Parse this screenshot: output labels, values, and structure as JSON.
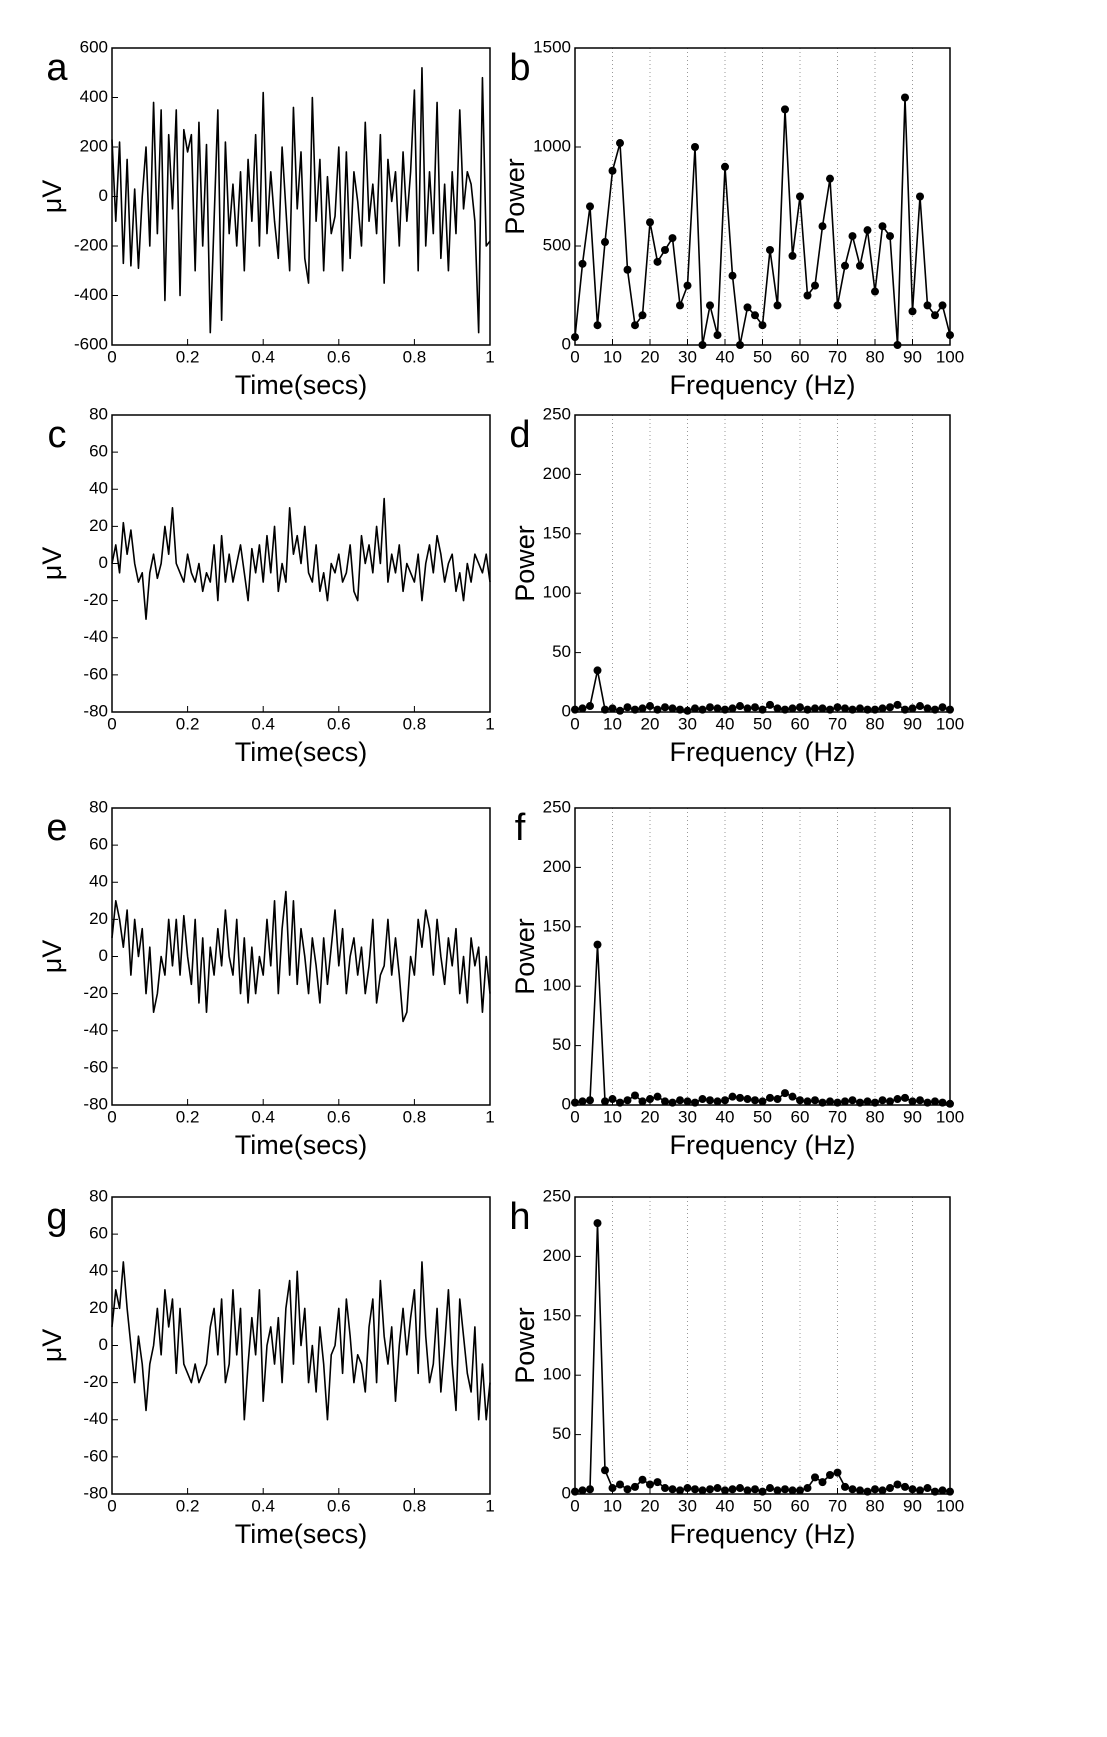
{
  "chart_data": [
    {
      "type": "line",
      "panel": "a",
      "xlabel": "Time(secs)",
      "ylabel": "μV",
      "color": "#000000",
      "markers": false,
      "grid": "none",
      "xlim": [
        0,
        1
      ],
      "ylim": [
        -600,
        600
      ],
      "xticks": [
        0,
        0.2,
        0.4,
        0.6,
        0.8,
        1
      ],
      "yticks": [
        -600,
        -400,
        -200,
        0,
        200,
        400,
        600
      ],
      "x": [
        0,
        0.01,
        0.02,
        0.03,
        0.04,
        0.05,
        0.06,
        0.07,
        0.08,
        0.09,
        0.1,
        0.11,
        0.12,
        0.13,
        0.14,
        0.15,
        0.16,
        0.17,
        0.18,
        0.19,
        0.2,
        0.21,
        0.22,
        0.23,
        0.24,
        0.25,
        0.26,
        0.27,
        0.28,
        0.29,
        0.3,
        0.31,
        0.32,
        0.33,
        0.34,
        0.35,
        0.36,
        0.37,
        0.38,
        0.39,
        0.4,
        0.41,
        0.42,
        0.43,
        0.44,
        0.45,
        0.46,
        0.47,
        0.48,
        0.49,
        0.5,
        0.51,
        0.52,
        0.53,
        0.54,
        0.55,
        0.56,
        0.57,
        0.58,
        0.59,
        0.6,
        0.61,
        0.62,
        0.63,
        0.64,
        0.65,
        0.66,
        0.67,
        0.68,
        0.69,
        0.7,
        0.71,
        0.72,
        0.73,
        0.74,
        0.75,
        0.76,
        0.77,
        0.78,
        0.79,
        0.8,
        0.81,
        0.82,
        0.83,
        0.84,
        0.85,
        0.86,
        0.87,
        0.88,
        0.89,
        0.9,
        0.91,
        0.92,
        0.93,
        0.94,
        0.95,
        0.96,
        0.97,
        0.98,
        0.99,
        1
      ],
      "values": [
        230,
        -100,
        220,
        -270,
        150,
        -280,
        30,
        -290,
        0,
        200,
        -200,
        380,
        -150,
        350,
        -420,
        250,
        -50,
        350,
        -400,
        270,
        180,
        250,
        -300,
        300,
        -200,
        210,
        -550,
        -100,
        350,
        -500,
        220,
        -150,
        50,
        -200,
        100,
        -300,
        150,
        -100,
        250,
        -200,
        420,
        -150,
        100,
        -100,
        -250,
        200,
        -50,
        -300,
        360,
        -50,
        180,
        -250,
        -350,
        400,
        -100,
        150,
        -300,
        80,
        -150,
        -80,
        200,
        -300,
        180,
        -250,
        100,
        -20,
        -200,
        300,
        -100,
        50,
        -150,
        250,
        -350,
        150,
        -20,
        100,
        -200,
        180,
        -100,
        100,
        430,
        -300,
        520,
        -200,
        100,
        -150,
        380,
        -250,
        50,
        -300,
        100,
        -150,
        350,
        -50,
        100,
        50,
        -100,
        -550,
        480,
        -200,
        -180
      ]
    },
    {
      "type": "line",
      "panel": "b",
      "xlabel": "Frequency (Hz)",
      "ylabel": "Power",
      "color": "#000000",
      "markers": true,
      "grid": "x",
      "xlim": [
        0,
        100
      ],
      "ylim": [
        0,
        1500
      ],
      "xticks": [
        0,
        10,
        20,
        30,
        40,
        50,
        60,
        70,
        80,
        90,
        100
      ],
      "yticks": [
        0,
        500,
        1000,
        1500
      ],
      "x": [
        0,
        2,
        4,
        6,
        8,
        10,
        12,
        14,
        16,
        18,
        20,
        22,
        24,
        26,
        28,
        30,
        32,
        34,
        36,
        38,
        40,
        42,
        44,
        46,
        48,
        50,
        52,
        54,
        56,
        58,
        60,
        62,
        64,
        66,
        68,
        70,
        72,
        74,
        76,
        78,
        80,
        82,
        84,
        86,
        88,
        90,
        92,
        94,
        96,
        98,
        100
      ],
      "values": [
        40,
        410,
        700,
        100,
        520,
        880,
        1020,
        380,
        100,
        150,
        620,
        420,
        480,
        540,
        200,
        300,
        1000,
        0,
        200,
        50,
        900,
        350,
        0,
        190,
        150,
        100,
        480,
        200,
        1190,
        450,
        750,
        250,
        300,
        600,
        840,
        200,
        400,
        550,
        400,
        580,
        270,
        600,
        550,
        0,
        1250,
        170,
        750,
        200,
        150,
        200,
        50
      ]
    },
    {
      "type": "line",
      "panel": "c",
      "xlabel": "Time(secs)",
      "ylabel": "μV",
      "color": "#000000",
      "markers": false,
      "grid": "none",
      "xlim": [
        0,
        1
      ],
      "ylim": [
        -80,
        80
      ],
      "xticks": [
        0,
        0.2,
        0.4,
        0.6,
        0.8,
        1
      ],
      "yticks": [
        -80,
        -60,
        -40,
        -20,
        0,
        20,
        40,
        60,
        80
      ],
      "x": [
        0,
        0.01,
        0.02,
        0.03,
        0.04,
        0.05,
        0.06,
        0.07,
        0.08,
        0.09,
        0.1,
        0.11,
        0.12,
        0.13,
        0.14,
        0.15,
        0.16,
        0.17,
        0.18,
        0.19,
        0.2,
        0.21,
        0.22,
        0.23,
        0.24,
        0.25,
        0.26,
        0.27,
        0.28,
        0.29,
        0.3,
        0.31,
        0.32,
        0.33,
        0.34,
        0.35,
        0.36,
        0.37,
        0.38,
        0.39,
        0.4,
        0.41,
        0.42,
        0.43,
        0.44,
        0.45,
        0.46,
        0.47,
        0.48,
        0.49,
        0.5,
        0.51,
        0.52,
        0.53,
        0.54,
        0.55,
        0.56,
        0.57,
        0.58,
        0.59,
        0.6,
        0.61,
        0.62,
        0.63,
        0.64,
        0.65,
        0.66,
        0.67,
        0.68,
        0.69,
        0.7,
        0.71,
        0.72,
        0.73,
        0.74,
        0.75,
        0.76,
        0.77,
        0.78,
        0.79,
        0.8,
        0.81,
        0.82,
        0.83,
        0.84,
        0.85,
        0.86,
        0.87,
        0.88,
        0.89,
        0.9,
        0.91,
        0.92,
        0.93,
        0.94,
        0.95,
        0.96,
        0.97,
        0.98,
        0.99,
        1
      ],
      "values": [
        0,
        10,
        -5,
        22,
        5,
        18,
        0,
        -10,
        -5,
        -30,
        -5,
        5,
        -8,
        0,
        20,
        5,
        30,
        0,
        -5,
        -10,
        5,
        -5,
        -10,
        0,
        -15,
        -5,
        -10,
        10,
        -20,
        15,
        -10,
        5,
        -10,
        0,
        10,
        -5,
        -20,
        8,
        -5,
        10,
        -10,
        15,
        -5,
        20,
        -15,
        0,
        -10,
        30,
        5,
        15,
        0,
        20,
        -5,
        -10,
        10,
        -15,
        -5,
        -20,
        0,
        -5,
        5,
        -10,
        -5,
        10,
        -15,
        -20,
        15,
        0,
        10,
        -5,
        20,
        0,
        35,
        -10,
        5,
        -5,
        10,
        -15,
        0,
        -5,
        -10,
        5,
        -20,
        0,
        10,
        -5,
        15,
        5,
        -10,
        0,
        5,
        -15,
        -5,
        -20,
        0,
        -10,
        5,
        0,
        -5,
        5,
        -10
      ]
    },
    {
      "type": "line",
      "panel": "d",
      "xlabel": "Frequency (Hz)",
      "ylabel": "Power",
      "color": "#000000",
      "markers": true,
      "grid": "x",
      "xlim": [
        0,
        100
      ],
      "ylim": [
        0,
        250
      ],
      "xticks": [
        0,
        10,
        20,
        30,
        40,
        50,
        60,
        70,
        80,
        90,
        100
      ],
      "yticks": [
        0,
        50,
        100,
        150,
        200,
        250
      ],
      "x": [
        0,
        2,
        4,
        6,
        8,
        10,
        12,
        14,
        16,
        18,
        20,
        22,
        24,
        26,
        28,
        30,
        32,
        34,
        36,
        38,
        40,
        42,
        44,
        46,
        48,
        50,
        52,
        54,
        56,
        58,
        60,
        62,
        64,
        66,
        68,
        70,
        72,
        74,
        76,
        78,
        80,
        82,
        84,
        86,
        88,
        90,
        92,
        94,
        96,
        98,
        100
      ],
      "values": [
        2,
        3,
        5,
        35,
        2,
        3,
        1,
        4,
        2,
        3,
        5,
        2,
        4,
        3,
        2,
        1,
        3,
        2,
        4,
        3,
        2,
        3,
        5,
        3,
        4,
        2,
        6,
        3,
        2,
        3,
        4,
        2,
        3,
        3,
        2,
        4,
        3,
        2,
        3,
        2,
        2,
        3,
        4,
        6,
        2,
        3,
        5,
        3,
        2,
        4,
        2
      ]
    },
    {
      "type": "line",
      "panel": "e",
      "xlabel": "Time(secs)",
      "ylabel": "μV",
      "color": "#000000",
      "markers": false,
      "grid": "none",
      "xlim": [
        0,
        1
      ],
      "ylim": [
        -80,
        80
      ],
      "xticks": [
        0,
        0.2,
        0.4,
        0.6,
        0.8,
        1
      ],
      "yticks": [
        -80,
        -60,
        -40,
        -20,
        0,
        20,
        40,
        60,
        80
      ],
      "x": [
        0,
        0.01,
        0.02,
        0.03,
        0.04,
        0.05,
        0.06,
        0.07,
        0.08,
        0.09,
        0.1,
        0.11,
        0.12,
        0.13,
        0.14,
        0.15,
        0.16,
        0.17,
        0.18,
        0.19,
        0.2,
        0.21,
        0.22,
        0.23,
        0.24,
        0.25,
        0.26,
        0.27,
        0.28,
        0.29,
        0.3,
        0.31,
        0.32,
        0.33,
        0.34,
        0.35,
        0.36,
        0.37,
        0.38,
        0.39,
        0.4,
        0.41,
        0.42,
        0.43,
        0.44,
        0.45,
        0.46,
        0.47,
        0.48,
        0.49,
        0.5,
        0.51,
        0.52,
        0.53,
        0.54,
        0.55,
        0.56,
        0.57,
        0.58,
        0.59,
        0.6,
        0.61,
        0.62,
        0.63,
        0.64,
        0.65,
        0.66,
        0.67,
        0.68,
        0.69,
        0.7,
        0.71,
        0.72,
        0.73,
        0.74,
        0.75,
        0.76,
        0.77,
        0.78,
        0.79,
        0.8,
        0.81,
        0.82,
        0.83,
        0.84,
        0.85,
        0.86,
        0.87,
        0.88,
        0.89,
        0.9,
        0.91,
        0.92,
        0.93,
        0.94,
        0.95,
        0.96,
        0.97,
        0.98,
        0.99,
        1
      ],
      "values": [
        10,
        30,
        20,
        5,
        25,
        -10,
        20,
        0,
        15,
        -20,
        5,
        -30,
        -20,
        0,
        -10,
        20,
        -5,
        20,
        -10,
        22,
        0,
        -15,
        20,
        -25,
        10,
        -30,
        5,
        -10,
        15,
        -5,
        25,
        0,
        -10,
        20,
        -20,
        10,
        -25,
        5,
        -20,
        0,
        -10,
        20,
        -5,
        30,
        -20,
        15,
        35,
        -10,
        30,
        -15,
        15,
        0,
        -20,
        10,
        -5,
        -25,
        10,
        -15,
        5,
        25,
        -5,
        15,
        -20,
        0,
        10,
        -10,
        5,
        -20,
        -5,
        20,
        -25,
        -10,
        -5,
        20,
        -10,
        10,
        -10,
        -35,
        -30,
        0,
        -10,
        20,
        5,
        25,
        15,
        -10,
        20,
        0,
        -15,
        10,
        -5,
        15,
        -20,
        0,
        -25,
        10,
        -5,
        5,
        -30,
        0,
        -20
      ]
    },
    {
      "type": "line",
      "panel": "f",
      "xlabel": "Frequency (Hz)",
      "ylabel": "Power",
      "color": "#000000",
      "markers": true,
      "grid": "x",
      "xlim": [
        0,
        100
      ],
      "ylim": [
        0,
        250
      ],
      "xticks": [
        0,
        10,
        20,
        30,
        40,
        50,
        60,
        70,
        80,
        90,
        100
      ],
      "yticks": [
        0,
        50,
        100,
        150,
        200,
        250
      ],
      "x": [
        0,
        2,
        4,
        6,
        8,
        10,
        12,
        14,
        16,
        18,
        20,
        22,
        24,
        26,
        28,
        30,
        32,
        34,
        36,
        38,
        40,
        42,
        44,
        46,
        48,
        50,
        52,
        54,
        56,
        58,
        60,
        62,
        64,
        66,
        68,
        70,
        72,
        74,
        76,
        78,
        80,
        82,
        84,
        86,
        88,
        90,
        92,
        94,
        96,
        98,
        100
      ],
      "values": [
        2,
        3,
        4,
        135,
        3,
        5,
        2,
        4,
        8,
        3,
        5,
        7,
        3,
        2,
        4,
        3,
        2,
        5,
        4,
        3,
        4,
        7,
        6,
        5,
        4,
        3,
        6,
        5,
        10,
        7,
        4,
        3,
        4,
        2,
        3,
        2,
        3,
        4,
        2,
        3,
        2,
        4,
        3,
        5,
        6,
        3,
        4,
        2,
        3,
        2,
        1
      ]
    },
    {
      "type": "line",
      "panel": "g",
      "xlabel": "Time(secs)",
      "ylabel": "μV",
      "color": "#000000",
      "markers": false,
      "grid": "none",
      "xlim": [
        0,
        1
      ],
      "ylim": [
        -80,
        80
      ],
      "xticks": [
        0,
        0.2,
        0.4,
        0.6,
        0.8,
        1
      ],
      "yticks": [
        -80,
        -60,
        -40,
        -20,
        0,
        20,
        40,
        60,
        80
      ],
      "x": [
        0,
        0.01,
        0.02,
        0.03,
        0.04,
        0.05,
        0.06,
        0.07,
        0.08,
        0.09,
        0.1,
        0.11,
        0.12,
        0.13,
        0.14,
        0.15,
        0.16,
        0.17,
        0.18,
        0.19,
        0.2,
        0.21,
        0.22,
        0.23,
        0.24,
        0.25,
        0.26,
        0.27,
        0.28,
        0.29,
        0.3,
        0.31,
        0.32,
        0.33,
        0.34,
        0.35,
        0.36,
        0.37,
        0.38,
        0.39,
        0.4,
        0.41,
        0.42,
        0.43,
        0.44,
        0.45,
        0.46,
        0.47,
        0.48,
        0.49,
        0.5,
        0.51,
        0.52,
        0.53,
        0.54,
        0.55,
        0.56,
        0.57,
        0.58,
        0.59,
        0.6,
        0.61,
        0.62,
        0.63,
        0.64,
        0.65,
        0.66,
        0.67,
        0.68,
        0.69,
        0.7,
        0.71,
        0.72,
        0.73,
        0.74,
        0.75,
        0.76,
        0.77,
        0.78,
        0.79,
        0.8,
        0.81,
        0.82,
        0.83,
        0.84,
        0.85,
        0.86,
        0.87,
        0.88,
        0.89,
        0.9,
        0.91,
        0.92,
        0.93,
        0.94,
        0.95,
        0.96,
        0.97,
        0.98,
        0.99,
        1
      ],
      "values": [
        10,
        30,
        20,
        45,
        20,
        0,
        -20,
        5,
        -10,
        -35,
        -10,
        0,
        20,
        -5,
        30,
        10,
        25,
        -15,
        20,
        -10,
        -15,
        -20,
        -10,
        -20,
        -15,
        -10,
        10,
        20,
        -5,
        25,
        -20,
        -10,
        30,
        -5,
        20,
        -40,
        -10,
        15,
        -5,
        30,
        -30,
        0,
        10,
        -10,
        15,
        -20,
        20,
        35,
        -10,
        40,
        0,
        20,
        -20,
        0,
        -25,
        10,
        -10,
        -40,
        -5,
        0,
        20,
        -15,
        25,
        5,
        -20,
        -5,
        -10,
        -25,
        10,
        25,
        -20,
        35,
        5,
        -10,
        10,
        -30,
        0,
        20,
        -5,
        15,
        30,
        -15,
        45,
        5,
        -20,
        -10,
        20,
        -25,
        0,
        30,
        -10,
        -35,
        25,
        5,
        -15,
        -25,
        10,
        -40,
        -10,
        -40,
        -20
      ]
    },
    {
      "type": "line",
      "panel": "h",
      "xlabel": "Frequency (Hz)",
      "ylabel": "Power",
      "color": "#000000",
      "markers": true,
      "grid": "x",
      "xlim": [
        0,
        100
      ],
      "ylim": [
        0,
        250
      ],
      "xticks": [
        0,
        10,
        20,
        30,
        40,
        50,
        60,
        70,
        80,
        90,
        100
      ],
      "yticks": [
        0,
        50,
        100,
        150,
        200,
        250
      ],
      "x": [
        0,
        2,
        4,
        6,
        8,
        10,
        12,
        14,
        16,
        18,
        20,
        22,
        24,
        26,
        28,
        30,
        32,
        34,
        36,
        38,
        40,
        42,
        44,
        46,
        48,
        50,
        52,
        54,
        56,
        58,
        60,
        62,
        64,
        66,
        68,
        70,
        72,
        74,
        76,
        78,
        80,
        82,
        84,
        86,
        88,
        90,
        92,
        94,
        96,
        98,
        100
      ],
      "values": [
        2,
        3,
        4,
        228,
        20,
        5,
        8,
        4,
        6,
        12,
        8,
        10,
        5,
        4,
        3,
        5,
        4,
        3,
        4,
        5,
        3,
        4,
        5,
        3,
        4,
        2,
        5,
        3,
        4,
        3,
        3,
        5,
        14,
        10,
        16,
        18,
        6,
        4,
        3,
        2,
        4,
        3,
        5,
        8,
        6,
        4,
        3,
        5,
        2,
        3,
        2
      ]
    }
  ]
}
